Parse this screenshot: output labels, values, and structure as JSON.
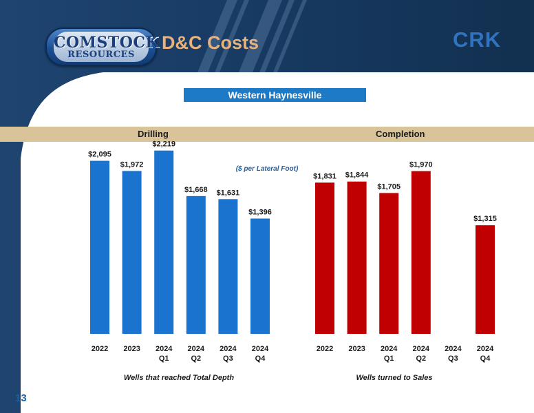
{
  "header": {
    "logo_top": "COMSTOCK",
    "logo_bottom": "RESOURCES",
    "title": "D&C Costs",
    "ticker": "CRK"
  },
  "region_label": "Western Haynesville",
  "slide_number": "13",
  "colors": {
    "drilling": "#1a73cf",
    "completion": "#c00000",
    "header_dark": "#17355a",
    "section_band": "#d9c49a"
  },
  "chart_data": [
    {
      "type": "bar",
      "title": "Drilling",
      "annotation": "($ per Lateral Foot)",
      "xlabel": "Wells that reached Total Depth",
      "categories": [
        [
          "2022"
        ],
        [
          "2023"
        ],
        [
          "2024",
          "Q1"
        ],
        [
          "2024",
          "Q2"
        ],
        [
          "2024",
          "Q3"
        ],
        [
          "2024",
          "Q4"
        ]
      ],
      "values": [
        2095,
        1972,
        2219,
        1668,
        1631,
        1396
      ],
      "value_labels": [
        "$2,095",
        "$1,972",
        "$2,219",
        "$1,668",
        "$1,631",
        "$1,396"
      ],
      "ylim": [
        0,
        2500
      ],
      "color": "#1a73cf"
    },
    {
      "type": "bar",
      "title": "Completion",
      "xlabel": "Wells turned to Sales",
      "categories": [
        [
          "2022"
        ],
        [
          "2023"
        ],
        [
          "2024",
          "Q1"
        ],
        [
          "2024",
          "Q2"
        ],
        [
          "2024",
          "Q3"
        ],
        [
          "2024",
          "Q4"
        ]
      ],
      "values": [
        1831,
        1844,
        1705,
        1970,
        null,
        1315
      ],
      "value_labels": [
        "$1,831",
        "$1,844",
        "$1,705",
        "$1,970",
        "",
        "$1,315"
      ],
      "ylim": [
        0,
        2500
      ],
      "color": "#c00000"
    }
  ]
}
